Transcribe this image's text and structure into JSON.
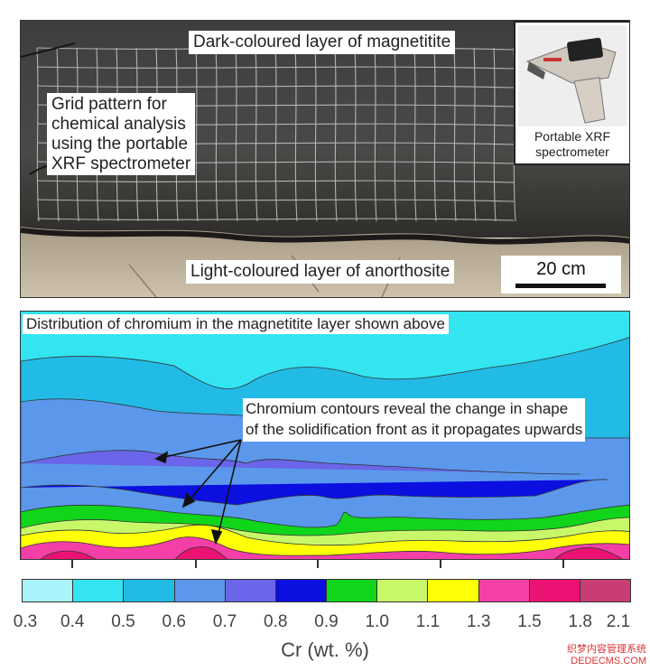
{
  "photo": {
    "label_dark": "Dark-coloured layer of magnetitite",
    "label_grid": [
      "Grid pattern for",
      "chemical analysis",
      "using the portable",
      "XRF spectrometer"
    ],
    "label_light": "Light-coloured layer of anorthosite",
    "scale_text": "20 cm",
    "inset_caption": [
      "Portable XRF",
      "spectrometer"
    ]
  },
  "map": {
    "title": "Distribution of chromium in the magnetitite layer shown above",
    "annotation": [
      "Chromium contours reveal the change in shape",
      "of the solidification front as it propagates upwards"
    ]
  },
  "colorbar": {
    "ticks": [
      "0.3",
      "0.4",
      "0.5",
      "0.6",
      "0.7",
      "0.8",
      "0.9",
      "1.0",
      "1.1",
      "1.3",
      "1.5",
      "1.8",
      "2.1"
    ],
    "colors": [
      "#a9f4fb",
      "#33e4f1",
      "#22bbe6",
      "#5b98ec",
      "#6a65e9",
      "#0b0fe0",
      "#11d51b",
      "#c8f86a",
      "#ffff06",
      "#f33fa7",
      "#ec1273",
      "#c83e74"
    ],
    "title": "Cr (wt. %)"
  },
  "watermark": [
    "织梦内容管理系统",
    "DEDECMS.COM"
  ]
}
